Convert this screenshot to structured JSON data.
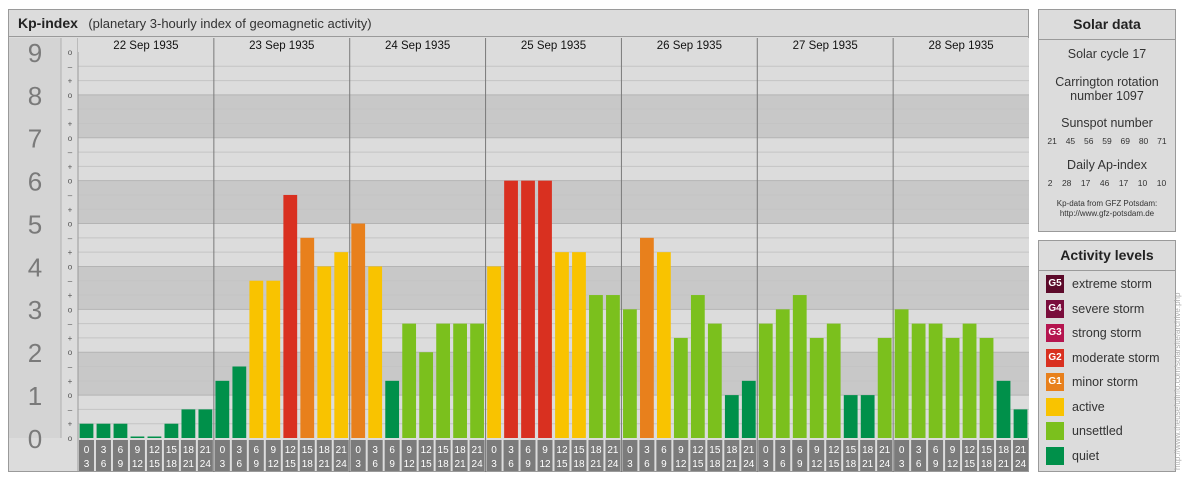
{
  "header": {
    "title": "Kp-index",
    "subtitle": "(planetary 3-hourly index of geomagnetic activity)"
  },
  "chart_data": {
    "type": "bar",
    "title": "Kp-index",
    "subtitle": "(planetary 3-hourly index of geomagnetic activity)",
    "ylim": [
      0,
      9
    ],
    "y_ticks": [
      "0",
      "1",
      "2",
      "3",
      "4",
      "5",
      "6",
      "7",
      "8",
      "9"
    ],
    "y_minor_ticks": [
      "o",
      "+",
      "–",
      "o",
      "+",
      "–",
      "o",
      "+",
      "–",
      "o",
      "+",
      "–",
      "o",
      "+",
      "–",
      "o",
      "+",
      "–",
      "o",
      "+",
      "–",
      "o",
      "+",
      "–",
      "o",
      "+",
      "–",
      "o"
    ],
    "days": [
      "22 Sep 1935",
      "23 Sep 1935",
      "24 Sep 1935",
      "25 Sep 1935",
      "26 Sep 1935",
      "27 Sep 1935",
      "28 Sep 1935"
    ],
    "hour_starts": [
      "0",
      "3",
      "6",
      "9",
      "12",
      "15",
      "18",
      "21"
    ],
    "hour_ends": [
      "3",
      "6",
      "9",
      "12",
      "15",
      "18",
      "21",
      "24"
    ],
    "values": [
      [
        0.333,
        0.333,
        0.333,
        0.0,
        0.0,
        0.333,
        0.667,
        0.667
      ],
      [
        1.333,
        1.667,
        3.667,
        3.667,
        5.667,
        4.667,
        4.0,
        4.333
      ],
      [
        5.0,
        4.0,
        1.333,
        2.667,
        2.0,
        2.667,
        2.667,
        2.667
      ],
      [
        4.0,
        6.0,
        6.0,
        6.0,
        4.333,
        4.333,
        3.333,
        3.333
      ],
      [
        3.0,
        4.667,
        4.333,
        2.333,
        3.333,
        2.667,
        1.0,
        1.333
      ],
      [
        2.667,
        3.0,
        3.333,
        2.333,
        2.667,
        1.0,
        1.0,
        2.333
      ],
      [
        3.0,
        2.667,
        2.667,
        2.333,
        2.667,
        2.333,
        1.333,
        0.667
      ]
    ],
    "level_colors": {
      "quiet": "#00904a",
      "unsettled": "#7bc01d",
      "active": "#f9c300",
      "G1": "#e8801c",
      "G2": "#d93020"
    },
    "grid": true,
    "legend": "right"
  },
  "solar": {
    "title": "Solar data",
    "cycle": "Solar cycle 17",
    "rotation_line1": "Carrington rotation",
    "rotation_line2": "number 1097",
    "sunspot_label": "Sunspot number",
    "sunspot": [
      "21",
      "45",
      "56",
      "59",
      "69",
      "80",
      "71"
    ],
    "ap_label": "Daily Ap-index",
    "ap": [
      "2",
      "28",
      "17",
      "46",
      "17",
      "10",
      "10"
    ],
    "credit_line1": "Kp-data from GFZ Potsdam:",
    "credit_line2": "http://www.gfz-potsdam.de"
  },
  "levels": {
    "title": "Activity levels",
    "items": [
      {
        "badge": "G5",
        "label": "extreme storm",
        "color": "#5c0a2a"
      },
      {
        "badge": "G4",
        "label": "severe storm",
        "color": "#7a0d3c"
      },
      {
        "badge": "G3",
        "label": "strong storm",
        "color": "#b5154f"
      },
      {
        "badge": "G2",
        "label": "moderate storm",
        "color": "#d93020"
      },
      {
        "badge": "G1",
        "label": "minor storm",
        "color": "#e8801c"
      },
      {
        "badge": "",
        "label": "active",
        "color": "#f9c300"
      },
      {
        "badge": "",
        "label": "unsettled",
        "color": "#7bc01d"
      },
      {
        "badge": "",
        "label": "quiet",
        "color": "#00904a"
      }
    ]
  },
  "watermark": "http://www.theusefulinfo.com/solarsite/archive.php"
}
